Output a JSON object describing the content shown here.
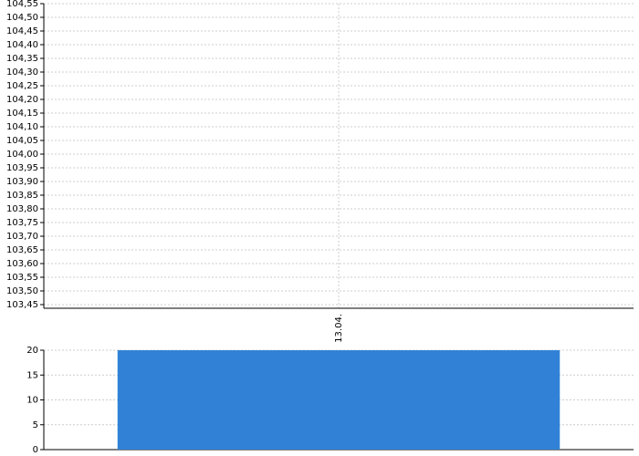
{
  "chart_data": [
    {
      "type": "line",
      "categories": [
        "13.04."
      ],
      "ylim": [
        103.45,
        104.55
      ],
      "yticks": [
        {
          "value": 103.45,
          "label": "103,45"
        },
        {
          "value": 103.5,
          "label": "103,50"
        },
        {
          "value": 103.55,
          "label": "103,55"
        },
        {
          "value": 103.6,
          "label": "103,60"
        },
        {
          "value": 103.65,
          "label": "103,65"
        },
        {
          "value": 103.7,
          "label": "103,70"
        },
        {
          "value": 103.75,
          "label": "103,75"
        },
        {
          "value": 103.8,
          "label": "103,80"
        },
        {
          "value": 103.85,
          "label": "103,85"
        },
        {
          "value": 103.9,
          "label": "103,90"
        },
        {
          "value": 103.95,
          "label": "103,95"
        },
        {
          "value": 104.0,
          "label": "104,00"
        },
        {
          "value": 104.05,
          "label": "104,05"
        },
        {
          "value": 104.1,
          "label": "104,10"
        },
        {
          "value": 104.15,
          "label": "104,15"
        },
        {
          "value": 104.2,
          "label": "104,20"
        },
        {
          "value": 104.25,
          "label": "104,25"
        },
        {
          "value": 104.3,
          "label": "104,30"
        },
        {
          "value": 104.35,
          "label": "104,35"
        },
        {
          "value": 104.4,
          "label": "104,40"
        },
        {
          "value": 104.45,
          "label": "104,45"
        },
        {
          "value": 104.5,
          "label": "104,50"
        },
        {
          "value": 104.55,
          "label": "104,55"
        }
      ],
      "grid": true
    },
    {
      "type": "bar",
      "categories": [
        null
      ],
      "values": [
        20
      ],
      "color": "#3182d6",
      "ylim": [
        0,
        20
      ],
      "yticks": [
        0,
        5,
        10,
        15,
        20
      ],
      "grid": true
    }
  ]
}
